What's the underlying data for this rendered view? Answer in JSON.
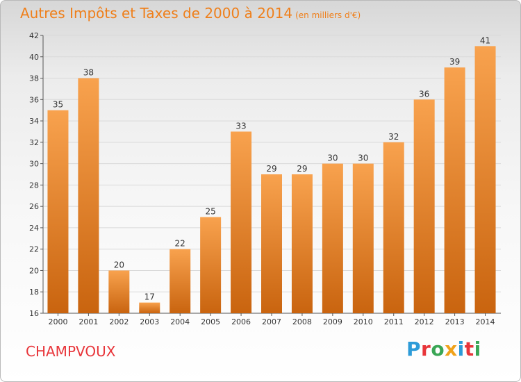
{
  "header": {
    "title": "Autres Impôts et Taxes de 2000 à 2014",
    "unit": "(en milliers d'€)"
  },
  "footer": {
    "commune": "CHAMPVOUX",
    "logo_text": "Proxiti"
  },
  "colors": {
    "title": "#ef7f1a",
    "bar_top": "#f8a24e",
    "bar_bottom": "#c9640f",
    "commune": "#e8353a",
    "grid": "#d9d9d9"
  },
  "logo_colors": [
    "#2d9bd8",
    "#e8353a",
    "#3aa655",
    "#f0a21a",
    "#2d9bd8",
    "#e8353a",
    "#3aa655"
  ],
  "chart_data": {
    "type": "bar",
    "title": "Autres Impôts et Taxes de 2000 à 2014",
    "subtitle": "(en milliers d'€)",
    "categories": [
      "2000",
      "2001",
      "2002",
      "2003",
      "2004",
      "2005",
      "2006",
      "2007",
      "2008",
      "2009",
      "2010",
      "2011",
      "2012",
      "2013",
      "2014"
    ],
    "values": [
      35,
      38,
      20,
      17,
      22,
      25,
      33,
      29,
      29,
      30,
      30,
      32,
      36,
      39,
      41
    ],
    "ylim": [
      16,
      42
    ],
    "yticks": [
      16,
      18,
      20,
      22,
      24,
      26,
      28,
      30,
      32,
      34,
      36,
      38,
      40,
      42
    ],
    "grid": true,
    "legend": "none"
  }
}
